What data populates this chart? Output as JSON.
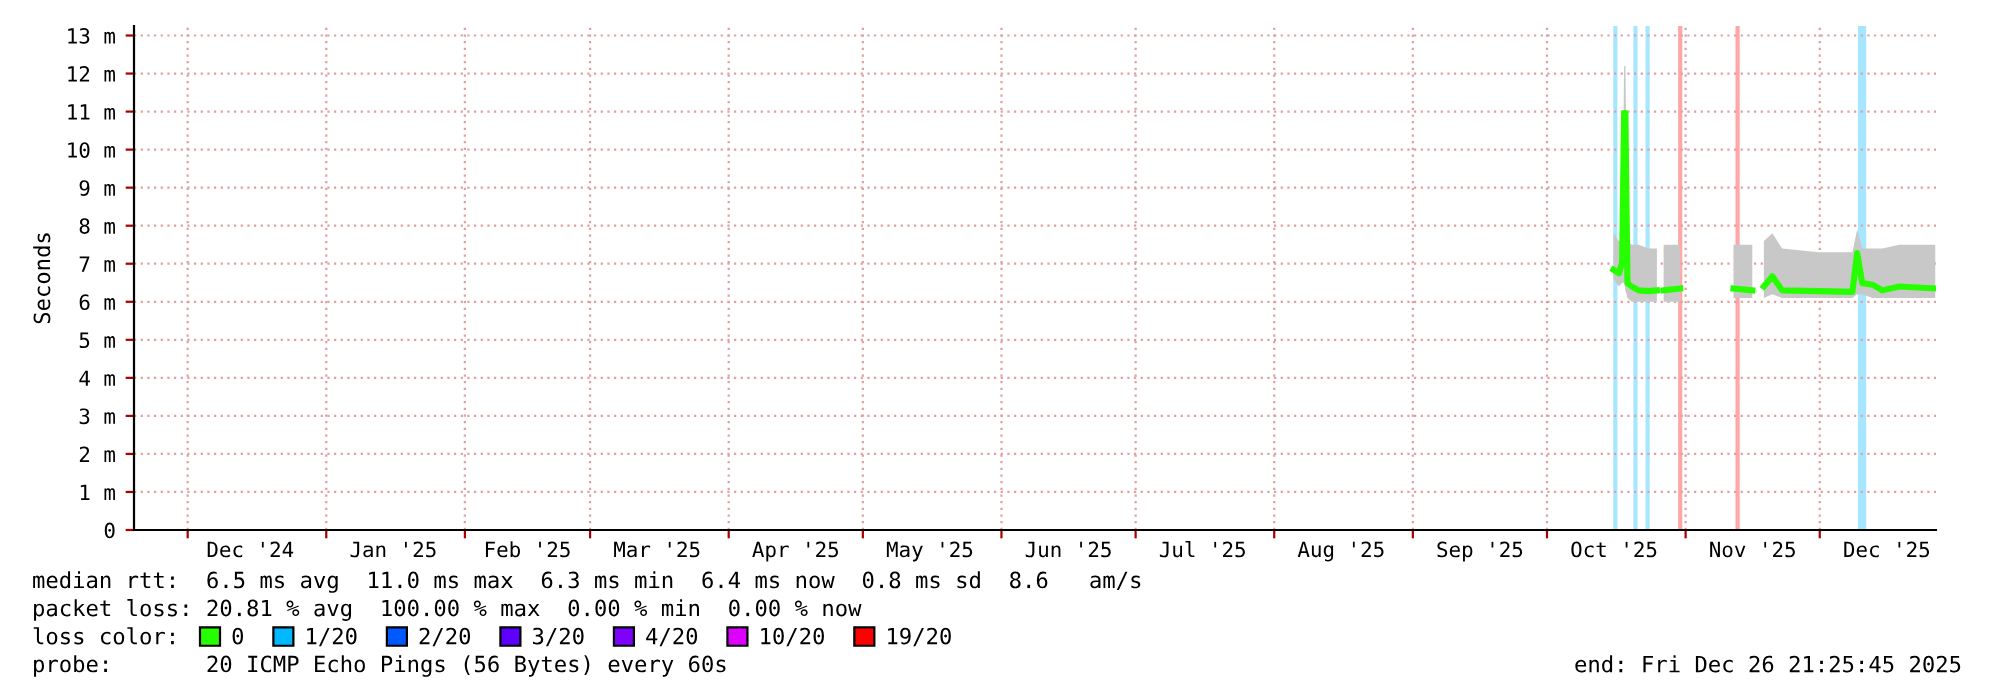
{
  "chart_data": {
    "type": "line",
    "ylabel": "Seconds",
    "xlim": [
      "2024-11-19",
      "2025-12-27"
    ],
    "xticks": [
      {
        "value": "2024-12-01",
        "label": null
      },
      {
        "value": "2025-01-01",
        "label": null
      },
      {
        "value": "2025-02-01",
        "label": null
      },
      {
        "value": "2025-03-01",
        "label": null
      },
      {
        "value": "2025-04-01",
        "label": null
      },
      {
        "value": "2025-05-01",
        "label": null
      },
      {
        "value": "2025-06-01",
        "label": null
      },
      {
        "value": "2025-07-01",
        "label": null
      },
      {
        "value": "2025-08-01",
        "label": null
      },
      {
        "value": "2025-09-01",
        "label": null
      },
      {
        "value": "2025-10-01",
        "label": null
      },
      {
        "value": "2025-11-01",
        "label": null
      },
      {
        "value": "2025-12-01",
        "label": null
      },
      {
        "value": "2024-12-15",
        "label": "Dec '24"
      },
      {
        "value": "2025-01-16",
        "label": "Jan '25"
      },
      {
        "value": "2025-02-15",
        "label": "Feb '25"
      },
      {
        "value": "2025-03-16",
        "label": "Mar '25"
      },
      {
        "value": "2025-04-16",
        "label": "Apr '25"
      },
      {
        "value": "2025-05-16",
        "label": "May '25"
      },
      {
        "value": "2025-06-16",
        "label": "Jun '25"
      },
      {
        "value": "2025-07-16",
        "label": "Jul '25"
      },
      {
        "value": "2025-08-16",
        "label": "Aug '25"
      },
      {
        "value": "2025-09-16",
        "label": "Sep '25"
      },
      {
        "value": "2025-10-16",
        "label": "Oct '25"
      },
      {
        "value": "2025-11-16",
        "label": "Nov '25"
      },
      {
        "value": "2025-12-16",
        "label": "Dec '25"
      }
    ],
    "ylim": [
      0,
      13.25
    ],
    "yticks": [
      0,
      {
        "value": 1,
        "label": "1 m"
      },
      {
        "value": 2,
        "label": "2 m"
      },
      {
        "value": 3,
        "label": "3 m"
      },
      {
        "value": 4,
        "label": "4 m"
      },
      {
        "value": 5,
        "label": "5 m"
      },
      {
        "value": 6,
        "label": "6 m"
      },
      {
        "value": 7,
        "label": "7 m"
      },
      {
        "value": 8,
        "label": "8 m"
      },
      {
        "value": 9,
        "label": "9 m"
      },
      {
        "value": 10,
        "label": "10 m"
      },
      {
        "value": 11,
        "label": "11 m"
      },
      {
        "value": 12,
        "label": "12 m"
      },
      {
        "value": 13,
        "label": "13 m"
      }
    ],
    "grid": true,
    "legend": "bottom",
    "series": [
      {
        "name": "0",
        "color": "#26ff00",
        "x": [
          "2025-10-15T21:00",
          "2025-10-17T02:00",
          "2025-10-17T19:00",
          "2025-10-18T06:00",
          "2025-10-18T13:00",
          "2025-10-19T00:00",
          "2025-10-20T00:00",
          "2025-10-21T12:00",
          "2025-10-23T19:00",
          "2025-10-25T14:00",
          "2025-10-26T12:00",
          "2025-10-27T02:00",
          "2025-10-30T19:00",
          "2025-11-05T00:00",
          "2025-11-11T17:00",
          "2025-11-15T22:00",
          "2025-11-16T22:00",
          "2025-11-18T12:00",
          "2025-11-20T10:00",
          "2025-11-22T14:00",
          "2025-11-30T19:00",
          "2025-12-08T07:00",
          "2025-12-09T09:00",
          "2025-12-10T12:00",
          "2025-12-12T19:00",
          "2025-12-15T00:00",
          "2025-12-18T19:00",
          "2025-12-26T20:00"
        ],
        "values": [
          6.84,
          6.75,
          7.02,
          10.96,
          10.96,
          6.49,
          6.4,
          6.3,
          6.28,
          6.3,
          null,
          6.3,
          6.35,
          null,
          6.35,
          6.3,
          null,
          6.4,
          6.67,
          6.3,
          6.28,
          6.26,
          7.28,
          6.49,
          6.45,
          6.3,
          6.4,
          6.35
        ],
        "lower": [
          6.6,
          6.4,
          6.5,
          6.5,
          6.3,
          6.1,
          6.0,
          6.0,
          6.0,
          6.0,
          null,
          6.0,
          6.0,
          null,
          6.1,
          6.1,
          null,
          6.1,
          6.2,
          6.1,
          6.1,
          6.1,
          6.2,
          6.2,
          6.1,
          6.1,
          6.1,
          6.1
        ],
        "upper": [
          7.8,
          7.6,
          7.6,
          12.2,
          12.2,
          7.6,
          7.5,
          7.5,
          7.4,
          7.4,
          null,
          7.5,
          7.5,
          null,
          7.5,
          7.5,
          null,
          7.6,
          7.8,
          7.4,
          7.3,
          7.3,
          7.9,
          7.4,
          7.4,
          7.4,
          7.5,
          7.5
        ]
      },
      {
        "name": "1/20",
        "color": "#00b8ff"
      },
      {
        "name": "2/20",
        "color": "#0059ff"
      },
      {
        "name": "3/20",
        "color": "#5e00ff"
      },
      {
        "name": "4/20",
        "color": "#7e00ff"
      },
      {
        "name": "10/20",
        "color": "#dd00ff"
      },
      {
        "name": "19/20",
        "color": "#ff0000"
      }
    ],
    "ref_lines": [
      {
        "axis": "x",
        "value": "2025-10-16T07:00",
        "color": "#a6e6ff"
      },
      {
        "axis": "x",
        "value": "2025-10-20T19:00",
        "color": "#a6e6ff"
      },
      {
        "axis": "x",
        "value": "2025-10-23T12:00",
        "color": "#a6e6ff"
      },
      {
        "axis": "x",
        "value": "2025-10-30T19:00",
        "color": "#ffa6a6"
      },
      {
        "axis": "x",
        "value": "2025-11-12T15:00",
        "color": "#ffa6a6"
      },
      {
        "axis": "x",
        "value": "2025-12-10T00:00",
        "color": "#a6e6ff"
      },
      {
        "axis": "x",
        "value": "2025-12-10T22:00",
        "color": "#a6e6ff"
      }
    ],
    "annotations": [
      "median rtt:  6.5 ms avg  11.0 ms max  6.3 ms min  6.4 ms now  0.8 ms sd  8.6   am/s",
      "packet loss: 20.81 % avg  100.00 % max  0.00 % min  0.00 % now",
      "loss color:",
      "probe:       20 ICMP Echo Pings (56 Bytes) every 60s",
      "end: Fri Dec 26 21:25:45 2025"
    ]
  }
}
